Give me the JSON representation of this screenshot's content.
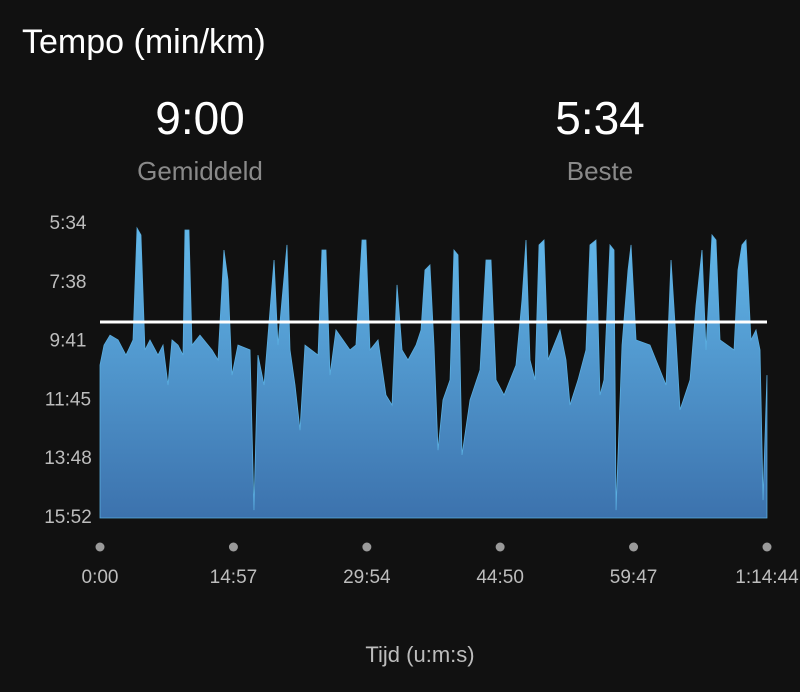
{
  "chart_data": {
    "type": "area",
    "title": "Tempo (min/km)",
    "average": {
      "value": 9.0,
      "label": "9:00",
      "name": "Gemiddeld"
    },
    "best": {
      "value": 5.567,
      "label": "5:34",
      "name": "Beste"
    },
    "x_label": "Tijd (u:m:s)",
    "color": "#5aaee0",
    "line_color": "#ffffff",
    "xlim": [
      0,
      74.733
    ],
    "xticks": [
      {
        "value": 0,
        "label": "0:00"
      },
      {
        "value": 14.95,
        "label": "14:57"
      },
      {
        "value": 29.9,
        "label": "29:54"
      },
      {
        "value": 44.833,
        "label": "44:50"
      },
      {
        "value": 59.783,
        "label": "59:47"
      },
      {
        "value": 74.733,
        "label": "1:14:44"
      }
    ],
    "ylim": [
      15.867,
      5.567
    ],
    "yticks": [
      {
        "value": 5.567,
        "label": "5:34"
      },
      {
        "value": 7.633,
        "label": "7:38"
      },
      {
        "value": 9.683,
        "label": "9:41"
      },
      {
        "value": 11.75,
        "label": "11:45"
      },
      {
        "value": 13.8,
        "label": "13:48"
      },
      {
        "value": 15.867,
        "label": "15:52"
      }
    ],
    "x": [
      0,
      0.45,
      1.12,
      2.02,
      2.91,
      3.7,
      4.15,
      4.59,
      5.04,
      5.6,
      6.5,
      7.06,
      7.62,
      8.07,
      8.74,
      9.3,
      9.52,
      9.97,
      10.31,
      11.2,
      12.55,
      13.22,
      13.89,
      14.34,
      14.79,
      15.46,
      16.81,
      17.25,
      17.7,
      18.38,
      19.5,
      19.94,
      20.39,
      20.95,
      21.29,
      21.85,
      22.41,
      22.97,
      24.43,
      24.87,
      25.32,
      25.77,
      26.44,
      28.01,
      28.68,
      29.36,
      29.8,
      30.25,
      31.15,
      32.04,
      32.72,
      33.28,
      33.84,
      34.51,
      35.41,
      35.97,
      36.41,
      36.97,
      37.42,
      37.87,
      38.43,
      39.22,
      39.66,
      40.11,
      40.56,
      41.46,
      42.58,
      43.25,
      43.81,
      44.37,
      45.27,
      46.61,
      47.28,
      47.73,
      48.18,
      48.74,
      49.19,
      49.75,
      50.2,
      51.54,
      52.21,
      52.66,
      53.56,
      54.45,
      54.9,
      55.57,
      56.02,
      56.47,
      57.14,
      57.59,
      57.82,
      58.49,
      59.16,
      59.5,
      60.06,
      61.62,
      63.42,
      63.98,
      64.54,
      64.99,
      66.11,
      66.78,
      67.45,
      67.9,
      68.57,
      69.02,
      69.47,
      71.04,
      71.48,
      71.93,
      72.38,
      72.94,
      73.5,
      73.95,
      74.29,
      74.73
    ],
    "values": [
      10.51,
      9.81,
      9.46,
      9.63,
      10.16,
      9.63,
      5.71,
      5.95,
      9.98,
      9.63,
      10.16,
      9.81,
      11.21,
      9.63,
      9.81,
      10.16,
      5.78,
      5.78,
      9.81,
      9.46,
      9.98,
      10.33,
      6.48,
      7.53,
      10.86,
      9.81,
      9.98,
      15.59,
      10.16,
      11.21,
      6.83,
      9.81,
      8.23,
      6.3,
      9.98,
      11.21,
      12.79,
      9.81,
      10.16,
      6.48,
      6.48,
      10.86,
      9.28,
      9.98,
      9.81,
      6.13,
      6.13,
      9.98,
      9.63,
      11.56,
      11.91,
      7.7,
      9.98,
      10.33,
      9.81,
      9.28,
      7.18,
      7.0,
      9.81,
      13.49,
      11.73,
      11.03,
      6.48,
      6.65,
      13.66,
      11.73,
      10.68,
      6.83,
      6.83,
      11.03,
      11.56,
      10.51,
      8.23,
      6.13,
      10.33,
      11.03,
      6.3,
      6.13,
      10.33,
      9.28,
      10.33,
      11.91,
      11.03,
      9.98,
      6.3,
      6.13,
      11.56,
      11.03,
      6.3,
      6.48,
      15.59,
      9.81,
      7.18,
      6.3,
      9.63,
      9.81,
      11.21,
      6.83,
      9.63,
      12.08,
      11.03,
      8.41,
      6.48,
      9.98,
      5.95,
      6.13,
      9.63,
      9.98,
      7.18,
      6.3,
      6.13,
      9.63,
      9.28,
      9.98,
      15.24,
      10.86
    ]
  }
}
